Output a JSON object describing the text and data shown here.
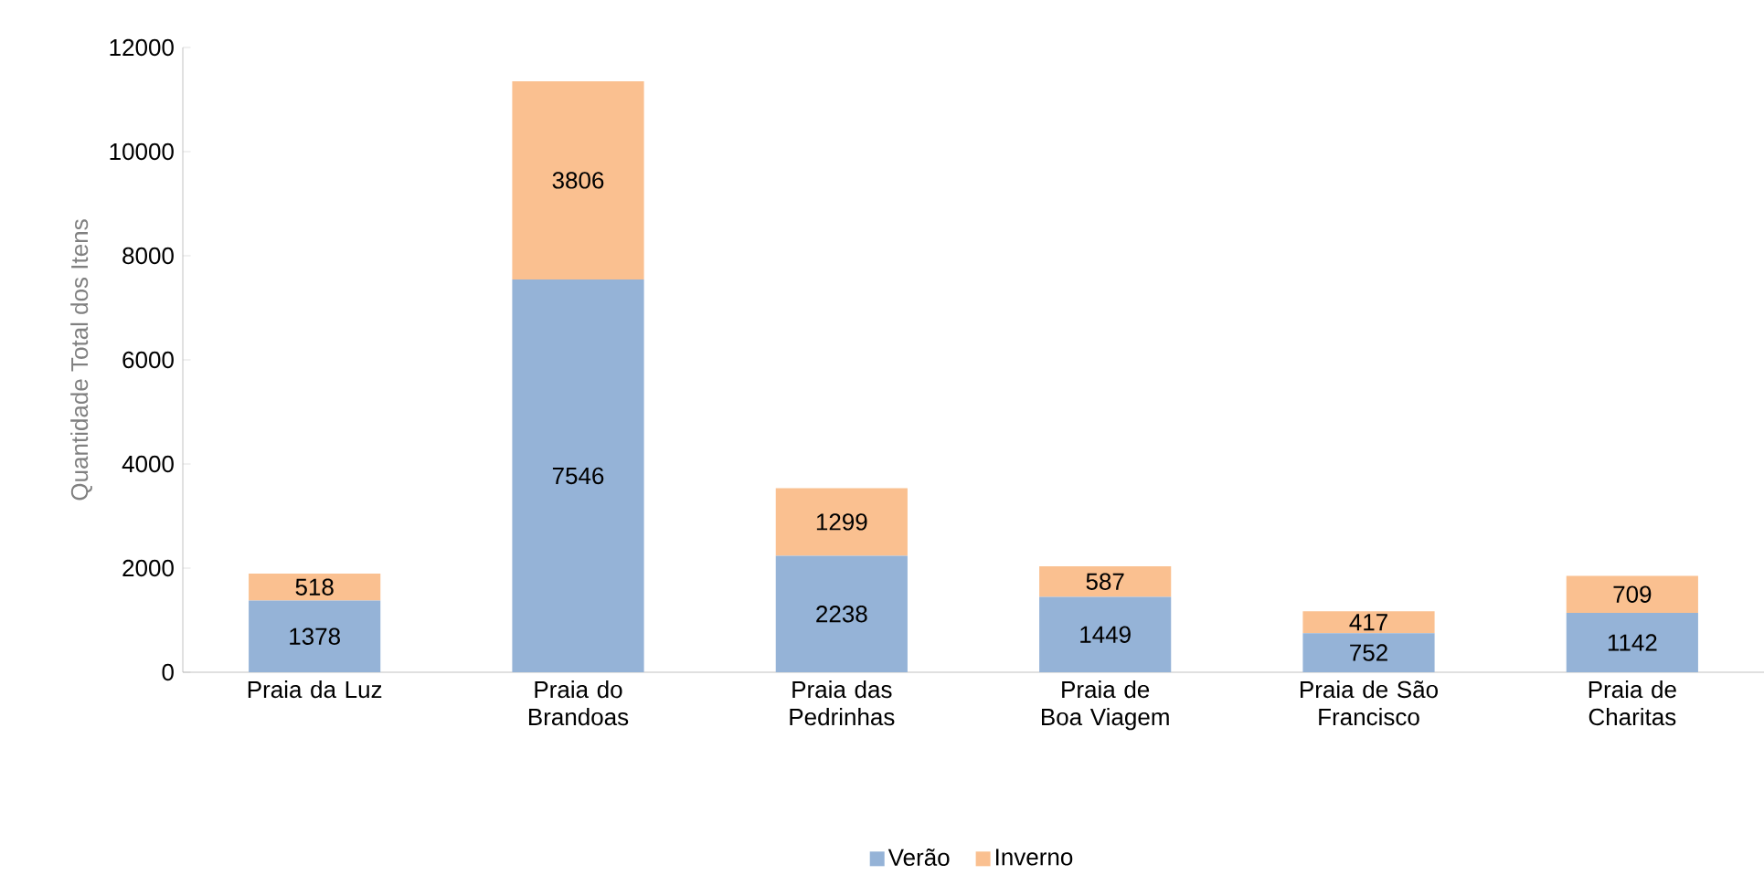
{
  "chart_data": {
    "type": "bar",
    "stacked": true,
    "ylabel": "Quantidade Total dos Itens",
    "categories": [
      "Praia da Luz",
      "Praia do Brandoas",
      "Praia das Pedrinhas",
      "Praia de Boa Viagem",
      "Praia de São Francisco",
      "Praia de Charitas"
    ],
    "series": [
      {
        "name": "Verão",
        "color": "#95b3d7",
        "values": [
          1378,
          7546,
          2238,
          1449,
          752,
          1142
        ]
      },
      {
        "name": "Inverno",
        "color": "#fac090",
        "values": [
          518,
          3806,
          1299,
          587,
          417,
          709
        ]
      }
    ],
    "ylim": [
      0,
      12000
    ],
    "yticks": [
      0,
      2000,
      4000,
      6000,
      8000,
      10000,
      12000
    ],
    "data_labels": true,
    "legend": "bottom",
    "grid": false
  }
}
